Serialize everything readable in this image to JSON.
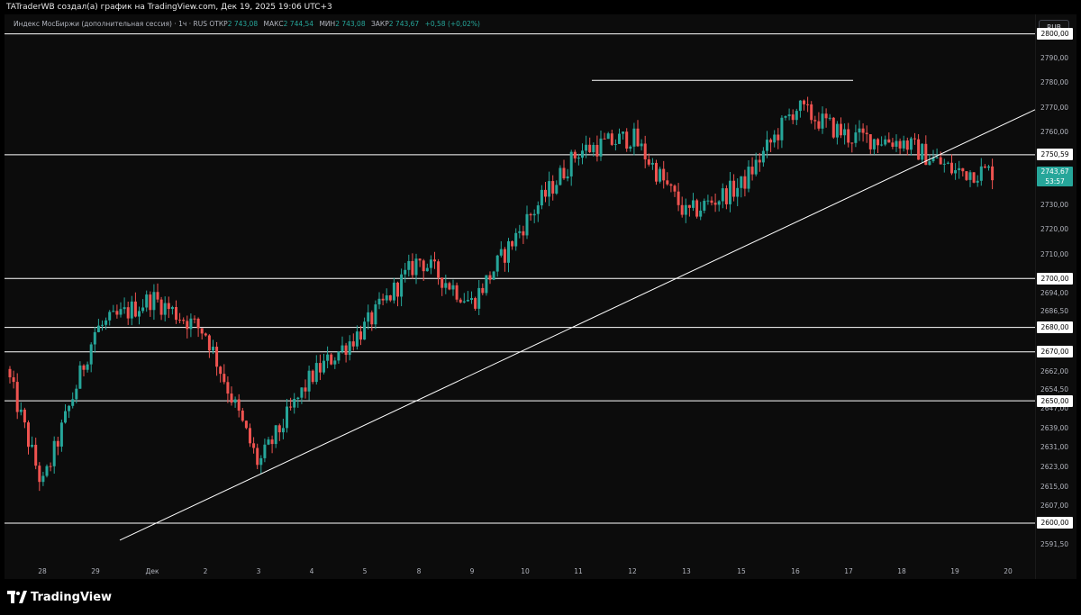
{
  "header": {
    "title": "TATraderWB создал(а) график на TradingView.com, Дек 19, 2025 19:06 UTC+3"
  },
  "legend": {
    "symbol": "Индекс МосБиржи (дополнительная сессия) · 1ч · RUS",
    "open_label": "ОТКР",
    "open_value": "2 743,08",
    "high_label": "МАКС",
    "high_value": "2 744,54",
    "low_label": "МИН",
    "low_value": "2 743,08",
    "close_label": "ЗАКР",
    "close_value": "2 743,67",
    "change": "+0,58 (+0,02%)"
  },
  "currency_button": "RUB",
  "footer": {
    "brand": "TradingView"
  },
  "colors": {
    "up": "#26a69a",
    "down": "#ef5350",
    "lines": "#ffffff",
    "background": "#0c0c0c"
  },
  "icons": {
    "brand_logo": "tradingview-logo-icon"
  },
  "chart_data": {
    "type": "candlestick",
    "timeframe": "1ч",
    "currency": "RUB",
    "y_axis": {
      "ylim": [
        2586,
        2805
      ],
      "tick_labels": [
        {
          "value": 2790,
          "label": "2790,00"
        },
        {
          "value": 2780,
          "label": "2780,00"
        },
        {
          "value": 2770,
          "label": "2770,00"
        },
        {
          "value": 2760,
          "label": "2760,00"
        },
        {
          "value": 2730,
          "label": "2730,00"
        },
        {
          "value": 2720,
          "label": "2720,00"
        },
        {
          "value": 2710,
          "label": "2710,00"
        },
        {
          "value": 2694,
          "label": "2694,00"
        },
        {
          "value": 2686.5,
          "label": "2686,50"
        },
        {
          "value": 2662,
          "label": "2662,00"
        },
        {
          "value": 2654.5,
          "label": "2654,50"
        },
        {
          "value": 2647,
          "label": "2647,00"
        },
        {
          "value": 2639,
          "label": "2639,00"
        },
        {
          "value": 2631,
          "label": "2631,00"
        },
        {
          "value": 2623,
          "label": "2623,00"
        },
        {
          "value": 2615,
          "label": "2615,00"
        },
        {
          "value": 2607,
          "label": "2607,00"
        },
        {
          "value": 2591.5,
          "label": "2591,50"
        }
      ]
    },
    "x_axis": {
      "tick_labels": [
        "28",
        "29",
        "Дек",
        "2",
        "3",
        "4",
        "5",
        "8",
        "9",
        "10",
        "11",
        "12",
        "13",
        "15",
        "16",
        "17",
        "18",
        "19",
        "20"
      ]
    },
    "horizontal_levels": [
      {
        "value": 2800,
        "label": "2800,00"
      },
      {
        "value": 2750.59,
        "label": "2750,59"
      },
      {
        "value": 2700,
        "label": "2700,00"
      },
      {
        "value": 2680,
        "label": "2680,00"
      },
      {
        "value": 2670,
        "label": "2670,00"
      },
      {
        "value": 2650,
        "label": "2650,00"
      },
      {
        "value": 2600,
        "label": "2600,00"
      }
    ],
    "resistance_segment": {
      "value": 2781,
      "from": "11",
      "to": "17"
    },
    "trendline": {
      "from": {
        "x": "29",
        "y": 2593
      },
      "to": {
        "x": "20",
        "y": 2769
      }
    },
    "current_price": {
      "value": 2743.67,
      "label": "2743,67",
      "countdown": "53:57"
    },
    "closes": [
      {
        "session": "28",
        "close": 2615
      },
      {
        "session": "29",
        "close": 2679
      },
      {
        "session": "Дек",
        "close": 2692
      },
      {
        "session": "2",
        "close": 2678
      },
      {
        "session": "3",
        "close": 2624
      },
      {
        "session": "4",
        "close": 2660
      },
      {
        "session": "5",
        "close": 2680
      },
      {
        "session": "8",
        "close": 2708
      },
      {
        "session": "9",
        "close": 2690
      },
      {
        "session": "10",
        "close": 2723
      },
      {
        "session": "11",
        "close": 2752
      },
      {
        "session": "12",
        "close": 2758
      },
      {
        "session": "13",
        "close": 2726
      },
      {
        "session": "15",
        "close": 2738
      },
      {
        "session": "16",
        "close": 2770
      },
      {
        "session": "17",
        "close": 2758
      },
      {
        "session": "18",
        "close": 2756
      },
      {
        "session": "19",
        "close": 2743.67
      }
    ]
  }
}
